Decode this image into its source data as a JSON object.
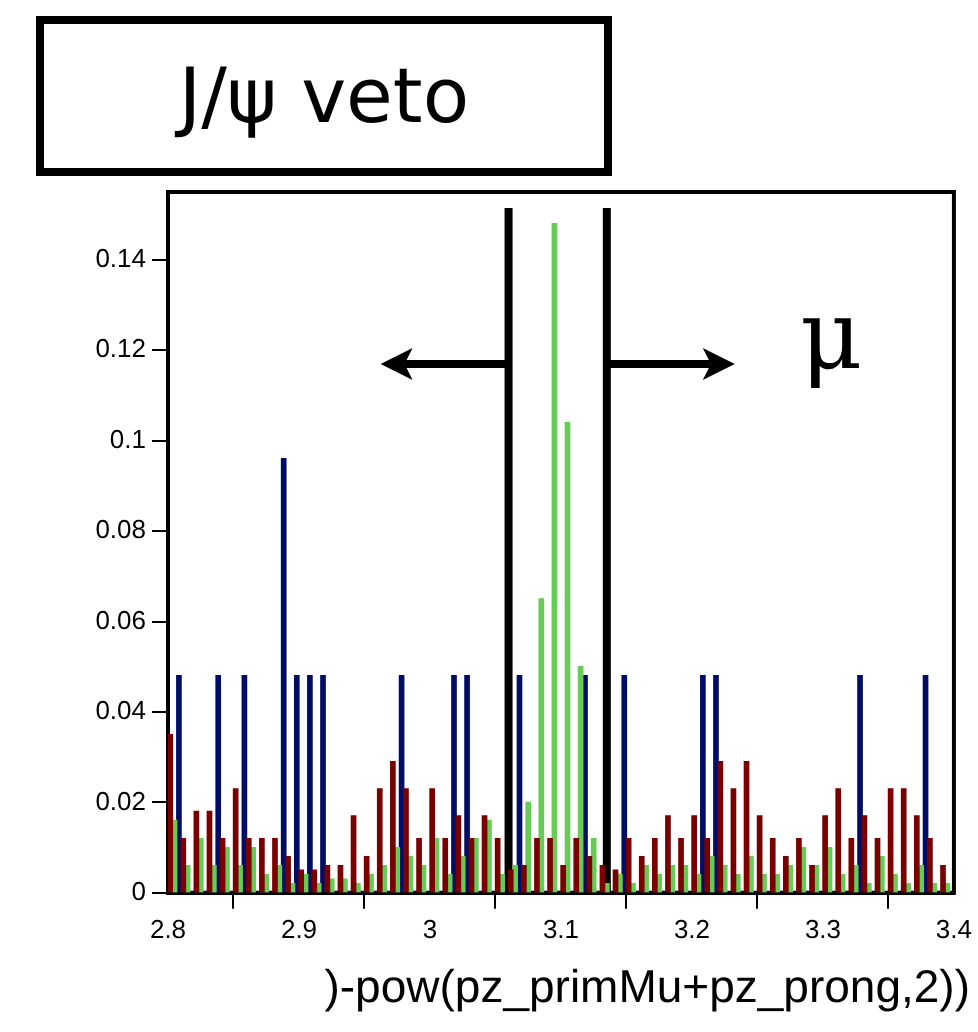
{
  "chart_data": {
    "type": "histogram",
    "xlabel": ")-pow(pz_primMu+pz_prong,2))",
    "bins": [
      2.8,
      2.81,
      2.82,
      2.83,
      2.84,
      2.85,
      2.86,
      2.87,
      2.88,
      2.89,
      2.9,
      2.91,
      2.92,
      2.93,
      2.94,
      2.95,
      2.96,
      2.97,
      2.98,
      2.99,
      3.0,
      3.01,
      3.02,
      3.03,
      3.04,
      3.05,
      3.06,
      3.07,
      3.08,
      3.09,
      3.1,
      3.11,
      3.12,
      3.13,
      3.14,
      3.15,
      3.16,
      3.17,
      3.18,
      3.19,
      3.2,
      3.21,
      3.22,
      3.23,
      3.24,
      3.25,
      3.26,
      3.27,
      3.28,
      3.29,
      3.3,
      3.31,
      3.32,
      3.33,
      3.34,
      3.35,
      3.36,
      3.37,
      3.38,
      3.39,
      3.4
    ],
    "series": [
      {
        "color": "#7a0000",
        "values": [
          0.035,
          0.012,
          0.018,
          0.018,
          0.012,
          0.023,
          0.012,
          0.012,
          0.012,
          0.008,
          0.005,
          0.005,
          0.006,
          0.006,
          0.017,
          0.008,
          0.023,
          0.029,
          0.023,
          0.012,
          0.023,
          0.012,
          0.017,
          0.012,
          0.017,
          0.012,
          0.005,
          0.006,
          0.012,
          0.012,
          0.006,
          0.012,
          0.008,
          0.006,
          0.005,
          0.012,
          0.008,
          0.012,
          0.017,
          0.012,
          0.017,
          0.012,
          0.029,
          0.023,
          0.029,
          0.017,
          0.012,
          0.008,
          0.012,
          0.006,
          0.017,
          0.023,
          0.012,
          0.017,
          0.012,
          0.023,
          0.023,
          0.017,
          0.012,
          0.006
        ]
      },
      {
        "color": "#66cc55",
        "values": [
          0.016,
          0.006,
          0.012,
          0.006,
          0.01,
          0.006,
          0.01,
          0.004,
          0.006,
          0.002,
          0.004,
          0.002,
          0.003,
          0.003,
          0.002,
          0.004,
          0.006,
          0.01,
          0.008,
          0.006,
          0.012,
          0.004,
          0.008,
          0.012,
          0.016,
          0.004,
          0.006,
          0.02,
          0.065,
          0.148,
          0.104,
          0.05,
          0.012,
          0.002,
          0.004,
          0.002,
          0.006,
          0.004,
          0.006,
          0.006,
          0.004,
          0.008,
          0.006,
          0.004,
          0.008,
          0.004,
          0.004,
          0.006,
          0.01,
          0.006,
          0.01,
          0.004,
          0.006,
          0.002,
          0.008,
          0.004,
          0.002,
          0.006,
          0.002,
          0.002
        ]
      },
      {
        "color": "#000d66",
        "values": [
          0.048,
          0,
          0,
          0.048,
          0,
          0.048,
          0,
          0,
          0.096,
          0.048,
          0.048,
          0.048,
          0,
          0,
          0,
          0,
          0,
          0.048,
          0,
          0,
          0,
          0.048,
          0.048,
          0,
          0,
          0,
          0.048,
          0,
          0,
          0,
          0,
          0.048,
          0,
          0,
          0.048,
          0,
          0,
          0,
          0,
          0,
          0.048,
          0.048,
          0,
          0,
          0,
          0,
          0,
          0,
          0,
          0,
          0,
          0,
          0.048,
          0,
          0,
          0,
          0,
          0.048,
          0,
          0
        ]
      }
    ],
    "xlim": [
      2.8,
      3.4
    ],
    "xticks": [
      2.8,
      2.9,
      3,
      3.1,
      3.2,
      3.3,
      3.4
    ],
    "ylim": [
      0,
      0.155
    ],
    "yticks": [
      0,
      0.02,
      0.04,
      0.06,
      0.08,
      0.1,
      0.12,
      0.14
    ],
    "grid": false,
    "legend": false,
    "ref_lines": [
      {
        "axis": "x",
        "value": 3.06,
        "color": "#000000"
      },
      {
        "axis": "x",
        "value": 3.135,
        "color": "#000000"
      }
    ],
    "annotations": [
      "J/ψ veto",
      "μ"
    ]
  }
}
